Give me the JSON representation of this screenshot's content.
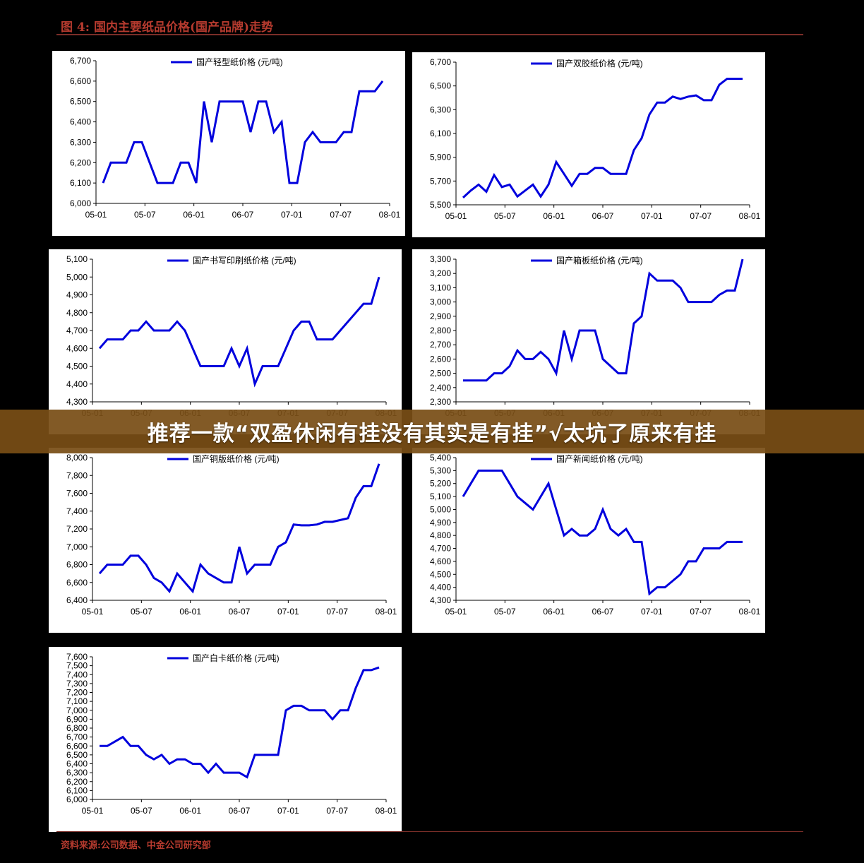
{
  "header": {
    "title": "图 4:  国内主要纸品价格(国产品牌)走势"
  },
  "footer": {
    "source": "资料来源:公司数据、中金公司研究部"
  },
  "banner": {
    "text": "推荐一款“双盈休闲有挂没有其实是有挂”√太坑了原来有挂"
  },
  "style": {
    "line_color": "#0000dd",
    "title_color": "#b53a2e",
    "banner_bg": "#784e16"
  },
  "chart_data": [
    {
      "type": "line",
      "title": "国产轻型纸价格 (元/吨)",
      "x_ticks": [
        "05-01",
        "05-07",
        "06-01",
        "06-07",
        "07-01",
        "07-07",
        "08-01"
      ],
      "y_ticks": [
        "6,000",
        "6,100",
        "6,200",
        "6,300",
        "6,400",
        "6,500",
        "6,600",
        "6,700"
      ],
      "ylim": [
        6000,
        6700
      ],
      "values": [
        6100,
        6200,
        6200,
        6200,
        6300,
        6300,
        6200,
        6100,
        6100,
        6100,
        6200,
        6200,
        6100,
        6500,
        6300,
        6500,
        6500,
        6500,
        6500,
        6350,
        6500,
        6500,
        6350,
        6400,
        6100,
        6100,
        6300,
        6350,
        6300,
        6300,
        6300,
        6350,
        6350,
        6550,
        6550,
        6550,
        6600
      ]
    },
    {
      "type": "line",
      "title": "国产双胶纸价格 (元/吨)",
      "x_ticks": [
        "05-01",
        "05-07",
        "06-01",
        "06-07",
        "07-01",
        "07-07",
        "08-01"
      ],
      "y_ticks": [
        "5,500",
        "5,700",
        "5,900",
        "6,100",
        "6,300",
        "6,500",
        "6,700"
      ],
      "ylim": [
        5500,
        6700
      ],
      "values": [
        5560,
        5620,
        5670,
        5610,
        5750,
        5650,
        5670,
        5570,
        5620,
        5670,
        5570,
        5670,
        5860,
        5760,
        5660,
        5760,
        5760,
        5810,
        5810,
        5760,
        5760,
        5760,
        5960,
        6060,
        6260,
        6360,
        6360,
        6410,
        6390,
        6410,
        6420,
        6380,
        6380,
        6510,
        6560,
        6560,
        6560
      ]
    },
    {
      "type": "line",
      "title": "国产书写印刷纸价格 (元/吨)",
      "x_ticks": [
        "05-01",
        "05-07",
        "06-01",
        "06-07",
        "07-01",
        "07-07",
        "08-01"
      ],
      "y_ticks": [
        "4,300",
        "4,400",
        "4,500",
        "4,600",
        "4,700",
        "4,800",
        "4,900",
        "5,000",
        "5,100"
      ],
      "ylim": [
        4300,
        5100
      ],
      "values": [
        4600,
        4650,
        4650,
        4650,
        4700,
        4700,
        4750,
        4700,
        4700,
        4700,
        4750,
        4700,
        4600,
        4500,
        4500,
        4500,
        4500,
        4600,
        4500,
        4600,
        4400,
        4500,
        4500,
        4500,
        4600,
        4700,
        4750,
        4750,
        4650,
        4650,
        4650,
        4700,
        4750,
        4800,
        4850,
        4850,
        5000
      ]
    },
    {
      "type": "line",
      "title": "国产箱板纸价格 (元/吨)",
      "x_ticks": [
        "05-01",
        "05-07",
        "06-01",
        "06-07",
        "07-01",
        "07-07",
        "08-01"
      ],
      "y_ticks": [
        "2,300",
        "2,400",
        "2,500",
        "2,600",
        "2,700",
        "2,800",
        "2,900",
        "3,000",
        "3,100",
        "3,200",
        "3,300"
      ],
      "ylim": [
        2300,
        3300
      ],
      "values": [
        2450,
        2450,
        2450,
        2450,
        2500,
        2500,
        2550,
        2660,
        2600,
        2600,
        2650,
        2600,
        2500,
        2800,
        2600,
        2800,
        2800,
        2800,
        2600,
        2550,
        2500,
        2500,
        2850,
        2900,
        3200,
        3150,
        3150,
        3150,
        3100,
        3000,
        3000,
        3000,
        3000,
        3050,
        3080,
        3080,
        3300
      ]
    },
    {
      "type": "line",
      "title": "国产铜版纸价格 (元/吨)",
      "x_ticks": [
        "05-01",
        "05-07",
        "06-01",
        "06-07",
        "07-01",
        "07-07",
        "08-01"
      ],
      "y_ticks": [
        "6,400",
        "6,600",
        "6,800",
        "7,000",
        "7,200",
        "7,400",
        "7,600",
        "7,800",
        "8,000"
      ],
      "ylim": [
        6400,
        8000
      ],
      "values": [
        6700,
        6800,
        6800,
        6800,
        6900,
        6900,
        6800,
        6650,
        6600,
        6500,
        6700,
        6600,
        6500,
        6800,
        6700,
        6650,
        6600,
        6600,
        7000,
        6700,
        6800,
        6800,
        6800,
        7000,
        7050,
        7250,
        7240,
        7240,
        7250,
        7280,
        7280,
        7300,
        7320,
        7550,
        7680,
        7680,
        7930
      ]
    },
    {
      "type": "line",
      "title": "国产新闻纸价格 (元/吨)",
      "x_ticks": [
        "05-01",
        "05-07",
        "06-01",
        "06-07",
        "07-01",
        "07-07",
        "08-01"
      ],
      "y_ticks": [
        "4,300",
        "4,400",
        "4,500",
        "4,600",
        "4,700",
        "4,800",
        "4,900",
        "5,000",
        "5,100",
        "5,200",
        "5,300",
        "5,400"
      ],
      "ylim": [
        4300,
        5400
      ],
      "values": [
        5100,
        5200,
        5300,
        5300,
        5300,
        5300,
        5200,
        5100,
        5050,
        5000,
        5100,
        5200,
        5000,
        4800,
        4850,
        4800,
        4800,
        4850,
        5000,
        4850,
        4800,
        4850,
        4750,
        4750,
        4350,
        4400,
        4400,
        4450,
        4500,
        4600,
        4600,
        4700,
        4700,
        4700,
        4750,
        4750,
        4750
      ]
    },
    {
      "type": "line",
      "title": "国产白卡纸价格 (元/吨)",
      "x_ticks": [
        "05-01",
        "05-07",
        "06-01",
        "06-07",
        "07-01",
        "07-07",
        "08-01"
      ],
      "y_ticks": [
        "6,000",
        "6,100",
        "6,200",
        "6,300",
        "6,400",
        "6,500",
        "6,600",
        "6,700",
        "6,800",
        "6,900",
        "7,000",
        "7,100",
        "7,200",
        "7,300",
        "7,400",
        "7,500",
        "7,600"
      ],
      "ylim": [
        6000,
        7600
      ],
      "values": [
        6600,
        6600,
        6650,
        6700,
        6600,
        6600,
        6500,
        6450,
        6500,
        6400,
        6450,
        6450,
        6400,
        6400,
        6300,
        6400,
        6300,
        6300,
        6300,
        6250,
        6500,
        6500,
        6500,
        6500,
        7000,
        7050,
        7050,
        7000,
        7000,
        7000,
        6900,
        7000,
        7000,
        7250,
        7450,
        7450,
        7480
      ]
    }
  ]
}
